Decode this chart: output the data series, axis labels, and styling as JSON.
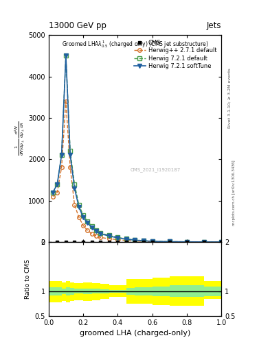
{
  "title": "13000 GeV pp",
  "title_right": "Jets",
  "xlabel": "groomed LHA (charged-only)",
  "ylabel_ratio": "Ratio to CMS",
  "right_label": "Rivet 3.1.10; ≥ 3.2M events",
  "watermark": "mcplots.cern.ch [arXiv:1306.3436]",
  "herwig_pp_x": [
    0.025,
    0.05,
    0.075,
    0.1,
    0.125,
    0.15,
    0.175,
    0.2,
    0.225,
    0.25,
    0.275,
    0.3,
    0.35,
    0.4,
    0.45,
    0.5,
    0.55,
    0.6,
    0.7,
    0.8,
    0.9,
    1.0
  ],
  "herwig_pp_y": [
    1100,
    1200,
    1800,
    3400,
    1800,
    900,
    600,
    400,
    280,
    200,
    150,
    110,
    80,
    55,
    38,
    25,
    15,
    8,
    5,
    2,
    1,
    0.5
  ],
  "herwig721_def_x": [
    0.025,
    0.05,
    0.075,
    0.1,
    0.125,
    0.15,
    0.175,
    0.2,
    0.225,
    0.25,
    0.275,
    0.3,
    0.35,
    0.4,
    0.45,
    0.5,
    0.55,
    0.6,
    0.7,
    0.8,
    0.9,
    1.0
  ],
  "herwig721_def_y": [
    1200,
    1400,
    2100,
    4500,
    2200,
    1400,
    900,
    650,
    500,
    380,
    290,
    220,
    160,
    110,
    75,
    50,
    32,
    18,
    10,
    5,
    2,
    1
  ],
  "herwig721_soft_x": [
    0.025,
    0.05,
    0.075,
    0.1,
    0.125,
    0.15,
    0.175,
    0.2,
    0.225,
    0.25,
    0.275,
    0.3,
    0.35,
    0.4,
    0.45,
    0.5,
    0.55,
    0.6,
    0.7,
    0.8,
    0.9,
    1.0
  ],
  "herwig721_soft_y": [
    1200,
    1400,
    2100,
    4500,
    2100,
    1300,
    850,
    600,
    460,
    350,
    265,
    200,
    145,
    100,
    68,
    45,
    30,
    17,
    9,
    4,
    2,
    1
  ],
  "cms_x": [
    0.05,
    0.1,
    0.15,
    0.2,
    0.25,
    0.3,
    0.35,
    0.4,
    0.45,
    0.5,
    0.55,
    0.6,
    0.7,
    0.8,
    0.9,
    1.0
  ],
  "cms_y": [
    0,
    0,
    0,
    0,
    0,
    0,
    0,
    0,
    0,
    0,
    0,
    0,
    0,
    0,
    0,
    0
  ],
  "ratio_edges": [
    0.0,
    0.025,
    0.05,
    0.075,
    0.1,
    0.125,
    0.15,
    0.175,
    0.2,
    0.25,
    0.3,
    0.35,
    0.4,
    0.45,
    0.5,
    0.6,
    0.7,
    0.8,
    0.9,
    1.0
  ],
  "ratio_yellow_lo": [
    0.78,
    0.78,
    0.78,
    0.8,
    0.78,
    0.8,
    0.82,
    0.82,
    0.8,
    0.82,
    0.85,
    0.88,
    0.88,
    0.75,
    0.75,
    0.72,
    0.7,
    0.7,
    0.85
  ],
  "ratio_yellow_hi": [
    1.2,
    1.2,
    1.2,
    1.18,
    1.2,
    1.18,
    1.16,
    1.16,
    1.18,
    1.16,
    1.15,
    1.12,
    1.12,
    1.25,
    1.25,
    1.28,
    1.3,
    1.3,
    1.2
  ],
  "ratio_green_lo": [
    0.92,
    0.92,
    0.92,
    0.94,
    0.92,
    0.93,
    0.95,
    0.95,
    0.94,
    0.95,
    0.96,
    0.97,
    0.97,
    0.93,
    0.92,
    0.9,
    0.88,
    0.88,
    0.9
  ],
  "ratio_green_hi": [
    1.08,
    1.08,
    1.08,
    1.06,
    1.08,
    1.07,
    1.05,
    1.05,
    1.06,
    1.05,
    1.04,
    1.03,
    1.03,
    1.07,
    1.08,
    1.1,
    1.12,
    1.12,
    1.1
  ],
  "color_herwig_pp": "#d4722a",
  "color_herwig721_def": "#4a9e4a",
  "color_herwig721_soft": "#2060a0",
  "ylim_main": [
    0,
    5000
  ],
  "ylim_ratio": [
    0.5,
    2.0
  ],
  "xlim": [
    0.0,
    1.0
  ],
  "yticks_main": [
    0,
    1000,
    2000,
    3000,
    4000,
    5000
  ],
  "ytick_labels_main": [
    "0",
    "1000",
    "2000",
    "3000",
    "4000",
    "5000"
  ],
  "background_color": "#ffffff"
}
